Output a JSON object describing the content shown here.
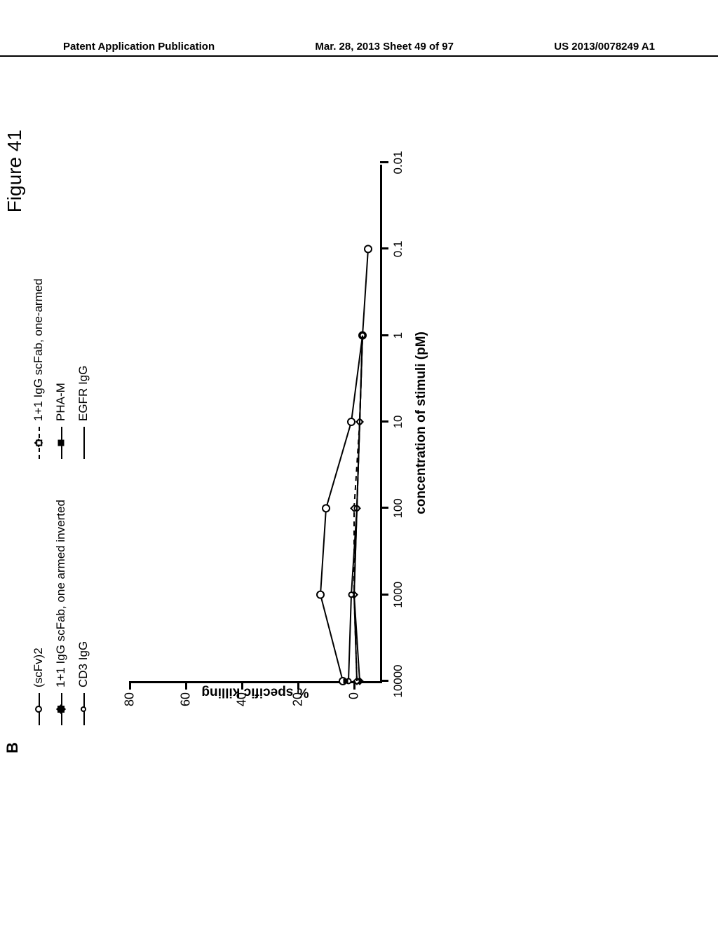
{
  "header": {
    "left": "Patent Application Publication",
    "center": "Mar. 28, 2013  Sheet 49 of 97",
    "right": "US 2013/0078249 A1"
  },
  "figure": {
    "panel_label": "B",
    "title": "Figure 41",
    "ylabel": "% specific killing",
    "xlabel": "concentration of stimuli (pM)",
    "chart_type": "line",
    "background": "#ffffff",
    "axis_color": "#000000",
    "axis_width": 3,
    "y": {
      "min": -10,
      "max": 80,
      "ticks": [
        0,
        20,
        40,
        60,
        80
      ]
    },
    "x": {
      "scale": "log",
      "min_exp": -2,
      "max_exp": 4,
      "ticks": [
        {
          "exp": 4,
          "label": "10000"
        },
        {
          "exp": 3,
          "label": "1000"
        },
        {
          "exp": 2,
          "label": "100"
        },
        {
          "exp": 1,
          "label": "10"
        },
        {
          "exp": 0,
          "label": "1"
        },
        {
          "exp": -1,
          "label": "0.1"
        },
        {
          "exp": -2,
          "label": "0.01"
        }
      ]
    },
    "legend": {
      "col1": [
        {
          "label": "(scFv)2",
          "line": "solid",
          "marker": "circle-open"
        },
        {
          "label": "1+1 IgG scFab, one armed inverted",
          "line": "solid",
          "marker": "diamond-filled"
        },
        {
          "label": "CD3 IgG",
          "line": "solid",
          "marker": "circle-small"
        }
      ],
      "col2": [
        {
          "label": "1+1 IgG scFab, one-armed",
          "line": "dashed",
          "marker": "diamond-open"
        },
        {
          "label": "PHA-M",
          "line": "solid",
          "marker": "square-filled"
        },
        {
          "label": "EGFR IgG",
          "line": "solid",
          "marker": "none"
        }
      ]
    },
    "series": [
      {
        "name": "(scFv)2",
        "color": "#000000",
        "line": "solid",
        "line_width": 2,
        "marker": "circle-open",
        "marker_size": 10,
        "points": [
          {
            "x_exp": 4,
            "y": 4
          },
          {
            "x_exp": 3,
            "y": 12
          },
          {
            "x_exp": 2,
            "y": 10
          },
          {
            "x_exp": 1,
            "y": 1
          },
          {
            "x_exp": 0,
            "y": -3
          },
          {
            "x_exp": -1,
            "y": -5
          }
        ]
      },
      {
        "name": "1+1 IgG scFab inverted",
        "color": "#000000",
        "line": "solid",
        "line_width": 2,
        "marker": "diamond-filled",
        "marker_size": 9,
        "points": [
          {
            "x_exp": 4,
            "y": -2
          },
          {
            "x_exp": 3,
            "y": 0
          },
          {
            "x_exp": 2,
            "y": -1
          },
          {
            "x_exp": 1,
            "y": -2
          },
          {
            "x_exp": 0,
            "y": -3
          }
        ]
      },
      {
        "name": "1+1 IgG scFab one-armed",
        "color": "#000000",
        "line": "dashed",
        "line_width": 2,
        "marker": "diamond-open",
        "marker_size": 9,
        "points": [
          {
            "x_exp": 4,
            "y": -1
          },
          {
            "x_exp": 3,
            "y": 0
          },
          {
            "x_exp": 2,
            "y": 0
          },
          {
            "x_exp": 1,
            "y": -2
          },
          {
            "x_exp": 0,
            "y": -3
          }
        ]
      },
      {
        "name": "CD3 IgG",
        "color": "#000000",
        "line": "solid",
        "line_width": 2,
        "marker": "circle-small",
        "marker_size": 7,
        "points": [
          {
            "x_exp": 4,
            "y": 2
          },
          {
            "x_exp": 3,
            "y": 1
          },
          {
            "x_exp": 2,
            "y": -1
          },
          {
            "x_exp": 1,
            "y": -2
          },
          {
            "x_exp": 0,
            "y": -3
          }
        ]
      },
      {
        "name": "PHA-M",
        "color": "#000000",
        "line": "solid",
        "line_width": 2,
        "marker": "square-filled",
        "marker_size": 7,
        "points": [
          {
            "x_exp": 4,
            "y": 3
          }
        ]
      },
      {
        "name": "EGFR IgG",
        "color": "#000000",
        "line": "solid",
        "line_width": 2,
        "marker": "none",
        "points": [
          {
            "x_exp": 4,
            "y": -1
          },
          {
            "x_exp": 3,
            "y": 0
          },
          {
            "x_exp": 2,
            "y": -1
          },
          {
            "x_exp": 1,
            "y": -2
          },
          {
            "x_exp": 0,
            "y": -3
          }
        ]
      }
    ]
  }
}
